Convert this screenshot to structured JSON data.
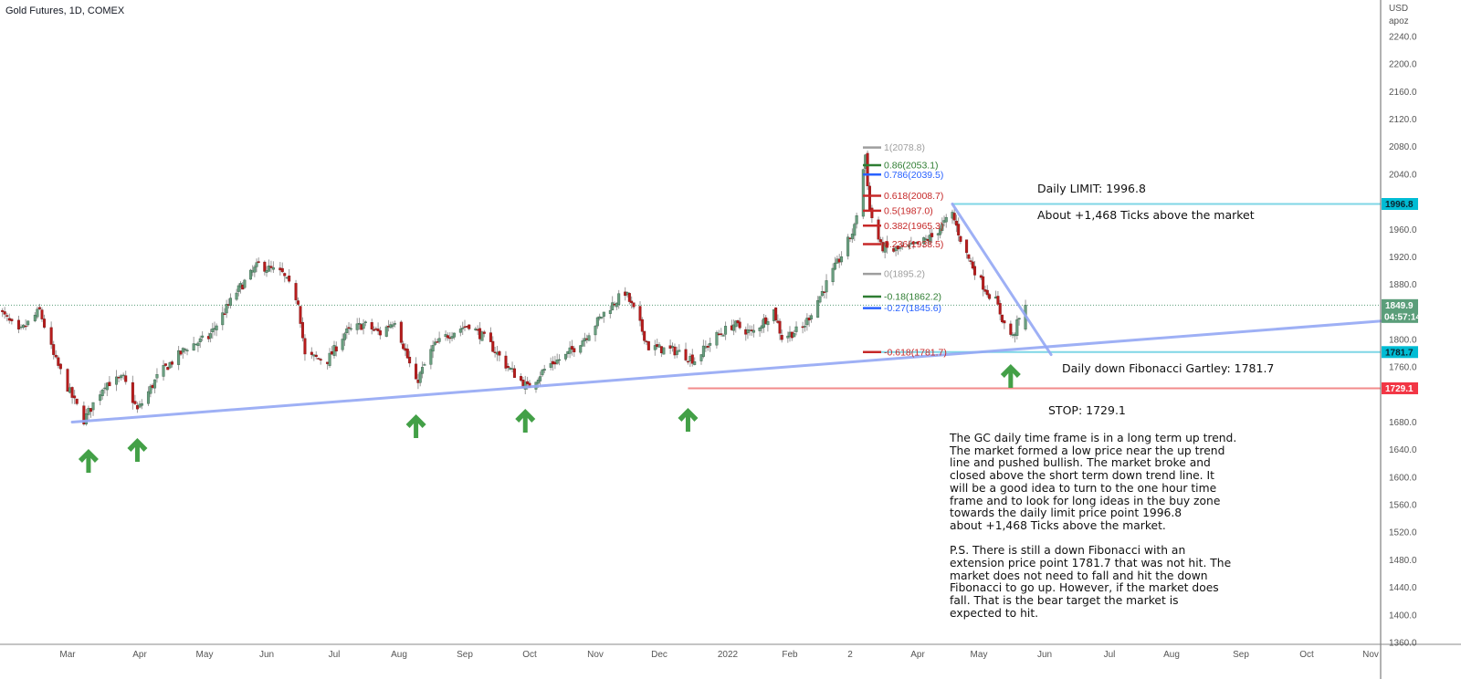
{
  "header": {
    "title": "Gold Futures, 1D, COMEX"
  },
  "price_axis": {
    "currency": "USD",
    "scale_mode": "apoz",
    "ticks": [
      2240,
      2200,
      2160,
      2120,
      2080,
      2040,
      1960,
      1920,
      1880,
      1800,
      1760,
      1680,
      1640,
      1600,
      1560,
      1520,
      1480,
      1440,
      1400,
      1360
    ],
    "tick_labels": [
      "2240.0",
      "2200.0",
      "2160.0",
      "2120.0",
      "2080.0",
      "2040.0",
      "1960.0",
      "1920.0",
      "1880.0",
      "1800.0",
      "1760.0",
      "1680.0",
      "1640.0",
      "1600.0",
      "1560.0",
      "1520.0",
      "1480.0",
      "1440.0",
      "1400.0",
      "1360.0"
    ],
    "range": [
      1360,
      2240
    ]
  },
  "time_axis": {
    "labels": [
      "Mar",
      "Apr",
      "May",
      "Jun",
      "Jul",
      "Aug",
      "Sep",
      "Oct",
      "Nov",
      "Dec",
      "2022",
      "Feb",
      "2",
      "Apr",
      "May",
      "Jun",
      "Jul",
      "Aug",
      "Sep",
      "Oct",
      "Nov"
    ]
  },
  "tags": {
    "limit": {
      "value": 1996.8,
      "label": "1996.8",
      "color": "#00bcd4"
    },
    "current": {
      "value": 1849.9,
      "label": "1849.9",
      "countdown": "04:57:14",
      "color": "#5b9e7a"
    },
    "fib_target": {
      "value": 1781.7,
      "label": "1781.7",
      "color": "#00bcd4"
    },
    "stop": {
      "value": 1729.1,
      "label": "1729.1",
      "color": "#f23645"
    }
  },
  "fib_levels": [
    {
      "label": "1(2078.8)",
      "price": 2078.8,
      "color": "#9e9e9e"
    },
    {
      "label": "0.86(2053.1)",
      "price": 2053.1,
      "color": "#2e7d32"
    },
    {
      "label": "0.786(2039.5)",
      "price": 2039.5,
      "color": "#2962ff"
    },
    {
      "label": "0.618(2008.7)",
      "price": 2008.7,
      "color": "#c62828"
    },
    {
      "label": "0.5(1987.0)",
      "price": 1987.0,
      "color": "#c62828"
    },
    {
      "label": "0.382(1965.3)",
      "price": 1965.3,
      "color": "#c62828"
    },
    {
      "label": "0.236(1938.5)",
      "price": 1938.5,
      "color": "#c62828"
    },
    {
      "label": "0(1895.2)",
      "price": 1895.2,
      "color": "#9e9e9e"
    },
    {
      "label": "-0.18(1862.2)",
      "price": 1862.2,
      "color": "#2e7d32"
    },
    {
      "label": "-0.27(1845.6)",
      "price": 1845.6,
      "color": "#2962ff"
    },
    {
      "label": "-0.618(1781.7)",
      "price": 1781.7,
      "color": "#c62828"
    }
  ],
  "annotations": {
    "limit_title": "Daily LIMIT: 1996.8",
    "limit_ticks": "About +1,468 Ticks above the market",
    "gartley": "Daily down Fibonacci Gartley: 1781.7",
    "stop": "STOP: 1729.1",
    "analysis": "The GC daily time frame is in a long term up trend.\nThe market formed a low price near the up trend\nline and pushed bullish. The market broke and\nclosed above the short term down trend line. It\nwill be a good idea to turn to the one hour time\nframe and to look for long ideas in the buy zone\ntowards the daily limit price point 1996.8\nabout +1,468 Ticks above the market.\n\nP.S. There is still a down Fibonacci with an\nextension price point 1781.7 that was not hit. The\nmarket does not need to fall and hit the down\nFibonacci to go up. However, if the market does\nfall. That is the bear target the market is\nexpected to hit."
  },
  "colors": {
    "up": "#6a9f80",
    "down": "#b71c1c",
    "trendline": "#94a8f5",
    "arrow": "#43a047"
  },
  "chart_data": {
    "type": "candlestick",
    "approx_close_path": [
      [
        "2021-01-29",
        1849
      ],
      [
        "2021-02-08",
        1809
      ],
      [
        "2021-02-17",
        1842
      ],
      [
        "2021-02-23",
        1776
      ],
      [
        "2021-03-02",
        1723
      ],
      [
        "2021-03-08",
        1683
      ],
      [
        "2021-03-17",
        1736
      ],
      [
        "2021-03-25",
        1743
      ],
      [
        "2021-03-31",
        1697
      ],
      [
        "2021-04-10",
        1750
      ],
      [
        "2021-04-23",
        1789
      ],
      [
        "2021-05-03",
        1803
      ],
      [
        "2021-05-17",
        1869
      ],
      [
        "2021-05-28",
        1909
      ],
      [
        "2021-06-08",
        1895
      ],
      [
        "2021-06-15",
        1856
      ],
      [
        "2021-06-18",
        1776
      ],
      [
        "2021-06-28",
        1770
      ],
      [
        "2021-07-06",
        1809
      ],
      [
        "2021-07-15",
        1822
      ],
      [
        "2021-07-23",
        1809
      ],
      [
        "2021-07-30",
        1829
      ],
      [
        "2021-08-09",
        1736
      ],
      [
        "2021-08-17",
        1789
      ],
      [
        "2021-08-25",
        1809
      ],
      [
        "2021-09-03",
        1822
      ],
      [
        "2021-09-12",
        1796
      ],
      [
        "2021-09-20",
        1763
      ],
      [
        "2021-09-30",
        1730
      ],
      [
        "2021-10-10",
        1763
      ],
      [
        "2021-10-18",
        1776
      ],
      [
        "2021-10-27",
        1803
      ],
      [
        "2021-11-06",
        1842
      ],
      [
        "2021-11-15",
        1869
      ],
      [
        "2021-11-21",
        1829
      ],
      [
        "2021-11-26",
        1789
      ],
      [
        "2021-12-09",
        1783
      ],
      [
        "2021-12-17",
        1770
      ],
      [
        "2021-12-26",
        1803
      ],
      [
        "2022-01-04",
        1822
      ],
      [
        "2022-01-13",
        1809
      ],
      [
        "2022-01-24",
        1842
      ],
      [
        "2022-01-28",
        1803
      ],
      [
        "2022-02-07",
        1816
      ],
      [
        "2022-02-16",
        1869
      ],
      [
        "2022-02-25",
        1922
      ],
      [
        "2022-03-03",
        1962
      ],
      [
        "2022-03-08",
        2068
      ],
      [
        "2022-03-10",
        1988
      ],
      [
        "2022-03-15",
        1935
      ],
      [
        "2022-03-21",
        1929
      ],
      [
        "2022-03-30",
        1935
      ],
      [
        "2022-04-08",
        1949
      ],
      [
        "2022-04-18",
        1982
      ],
      [
        "2022-04-24",
        1929
      ],
      [
        "2022-05-01",
        1889
      ],
      [
        "2022-05-05",
        1869
      ],
      [
        "2022-05-09",
        1856
      ],
      [
        "2022-05-13",
        1822
      ],
      [
        "2022-05-17",
        1803
      ],
      [
        "2022-05-19",
        1822
      ],
      [
        "2022-05-23",
        1849.9
      ]
    ],
    "trendlines": [
      {
        "kind": "up",
        "from": [
          "2021-03-03",
          1680
        ],
        "to": [
          "2022-11-07",
          1827
        ]
      },
      {
        "kind": "down",
        "from": [
          "2022-04-18",
          1996.8
        ],
        "to": [
          "2022-06-04",
          1778
        ]
      }
    ],
    "buy_arrows": [
      "2021-03-10",
      "2021-03-31",
      "2021-08-09",
      "2021-09-29",
      "2021-12-14",
      "2022-05-16"
    ]
  }
}
